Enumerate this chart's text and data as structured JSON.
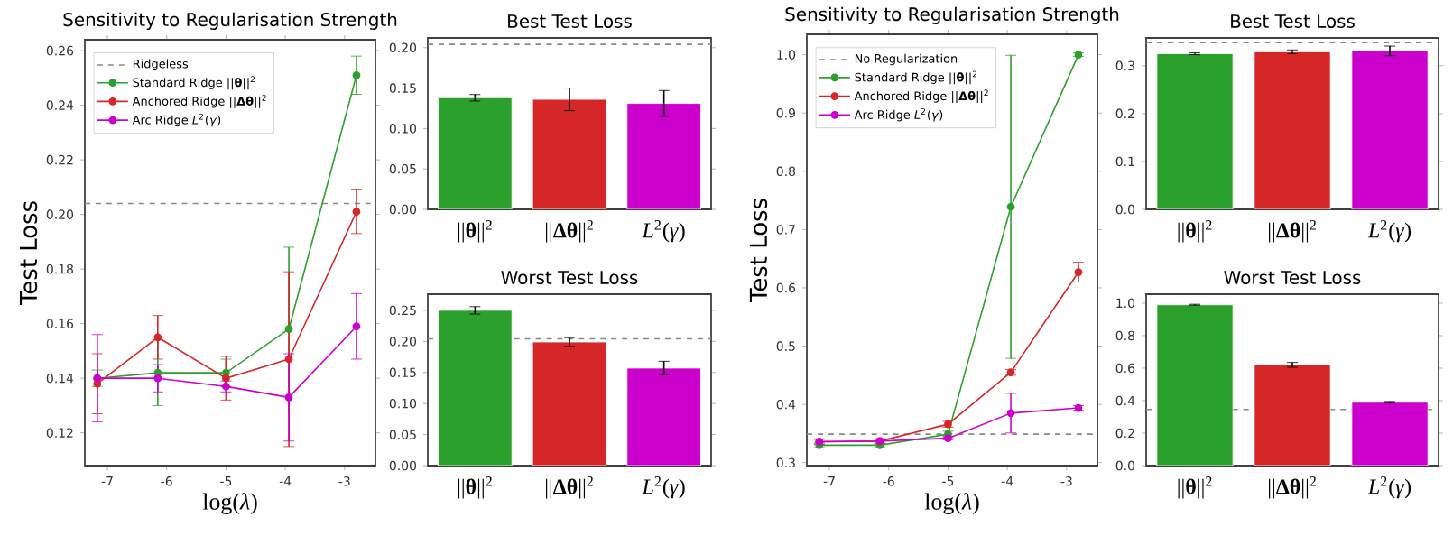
{
  "chart_data": [
    {
      "type": "line",
      "title": "Sensitivity to Regularisation Strength",
      "xlabel": "log(*λ*)",
      "ylabel": "Test Loss",
      "x": [
        -7.17,
        -6.15,
        -5.0,
        -3.94,
        -2.8
      ],
      "series": [
        {
          "name": "Standard Ridge ||**θ**||$^{2}$",
          "color": "#2ca02c",
          "values": [
            0.14,
            0.142,
            0.142,
            0.158,
            0.251
          ],
          "errors": [
            0.003,
            0.012,
            0.005,
            0.03,
            0.007
          ]
        },
        {
          "name": "Anchored Ridge ||**Δθ**||$^{2}$",
          "color": "#d62728",
          "values": [
            0.138,
            0.155,
            0.14,
            0.147,
            0.201
          ],
          "errors": [
            0.011,
            0.008,
            0.008,
            0.032,
            0.008
          ]
        },
        {
          "name": "Arc Ridge *L*$^{2}$(*γ*)",
          "color": "#cc00cc",
          "values": [
            0.14,
            0.14,
            0.137,
            0.133,
            0.159
          ],
          "errors": [
            0.016,
            0.005,
            0.002,
            0.016,
            0.012
          ]
        }
      ],
      "ref_lines": [
        {
          "axis": "y",
          "value": 0.204,
          "label": "Ridgeless",
          "color": "#888888",
          "line_style": "dashed"
        }
      ],
      "xlim": [
        -7.38,
        -2.48
      ],
      "xticks": [
        -7,
        -6,
        -5,
        -4,
        -3
      ],
      "ylim": [
        0.108,
        0.264
      ],
      "yticks": [
        0.12,
        0.14,
        0.16,
        0.18,
        {
          "value": 0.2,
          "label": "0.20"
        },
        0.22,
        0.24,
        0.26
      ],
      "legend": "top left",
      "marker": "circle",
      "line_style": "solid",
      "grid": false
    },
    {
      "type": "bar",
      "title": "Best Test Loss",
      "categories": [
        "||**θ**||$^{2}$",
        "||**Δθ**||$^{2}$",
        "*L*$^{2}$(*γ*)"
      ],
      "values": [
        0.138,
        0.136,
        0.131
      ],
      "errors": [
        0.004,
        0.014,
        0.016
      ],
      "colors": [
        "#2ca02c",
        "#d62728",
        "#cc00cc"
      ],
      "ref_lines": [
        {
          "axis": "y",
          "value": 0.204,
          "color": "#888888",
          "line_style": "dashed"
        }
      ],
      "ylim": [
        0,
        0.212
      ],
      "yticks": [
        {
          "value": 0,
          "label": "0.00"
        },
        0.05,
        {
          "value": 0.1,
          "label": "0.10"
        },
        0.15,
        {
          "value": 0.2,
          "label": "0.20"
        }
      ],
      "grid": false
    },
    {
      "type": "bar",
      "title": "Worst Test Loss",
      "categories": [
        "||**θ**||$^{2}$",
        "||**Δθ**||$^{2}$",
        "*L*$^{2}$(*γ*)"
      ],
      "values": [
        0.25,
        0.199,
        0.157
      ],
      "errors": [
        0.006,
        0.007,
        0.011
      ],
      "colors": [
        "#2ca02c",
        "#d62728",
        "#cc00cc"
      ],
      "ref_lines": [
        {
          "axis": "y",
          "value": 0.204,
          "color": "#888888",
          "line_style": "dashed"
        }
      ],
      "ylim": [
        0,
        0.276
      ],
      "yticks": [
        {
          "value": 0,
          "label": "0.00"
        },
        0.05,
        {
          "value": 0.1,
          "label": "0.10"
        },
        0.15,
        {
          "value": 0.2,
          "label": "0.20"
        },
        0.25
      ],
      "grid": false
    },
    {
      "type": "line",
      "title": "Sensitivity to Regularisation Strength",
      "xlabel": "log(*λ*)",
      "ylabel": "Test Loss",
      "x": [
        -7.17,
        -6.15,
        -5.0,
        -3.94,
        -2.8
      ],
      "series": [
        {
          "name": "Standard Ridge ||**θ**||$^{2}$",
          "color": "#2ca02c",
          "values": [
            0.33,
            0.33,
            0.349,
            0.739,
            1.0
          ],
          "errors": [
            0.004,
            0.004,
            0.005,
            0.26,
            0.003
          ]
        },
        {
          "name": "Anchored Ridge ||**Δθ**||$^{2}$",
          "color": "#d62728",
          "values": [
            0.336,
            0.337,
            0.366,
            0.455,
            0.627
          ],
          "errors": [
            0.004,
            0.004,
            0.005,
            0.005,
            0.017
          ]
        },
        {
          "name": "Arc Ridge *L*$^{2}$(*γ*)",
          "color": "#cc00cc",
          "values": [
            0.336,
            0.337,
            0.342,
            0.385,
            0.394
          ],
          "errors": [
            0.005,
            0.004,
            0.003,
            0.034,
            0.004
          ]
        }
      ],
      "ref_lines": [
        {
          "axis": "y",
          "value": 0.349,
          "label": "No Regularization",
          "color": "#888888",
          "line_style": "dashed"
        }
      ],
      "xlim": [
        -7.38,
        -2.48
      ],
      "xticks": [
        -7,
        -6,
        -5,
        -4,
        -3
      ],
      "ylim": [
        0.295,
        1.035
      ],
      "yticks": [
        0.3,
        0.4,
        0.5,
        0.6,
        0.7,
        0.8,
        0.9,
        {
          "value": 1.0,
          "label": "1.0"
        }
      ],
      "legend": "top left",
      "marker": "circle",
      "line_style": "solid",
      "grid": false
    },
    {
      "type": "bar",
      "title": "Best Test Loss",
      "categories": [
        "||**θ**||$^{2}$",
        "||**Δθ**||$^{2}$",
        "*L*$^{2}$(*γ*)"
      ],
      "values": [
        0.325,
        0.329,
        0.331
      ],
      "errors": [
        0.002,
        0.004,
        0.01
      ],
      "colors": [
        "#2ca02c",
        "#d62728",
        "#cc00cc"
      ],
      "ref_lines": [
        {
          "axis": "y",
          "value": 0.348,
          "color": "#888888",
          "line_style": "dashed"
        }
      ],
      "ylim": [
        0,
        0.358
      ],
      "yticks": [
        {
          "value": 0,
          "label": "0.0"
        },
        0.1,
        0.2,
        0.3
      ],
      "grid": false
    },
    {
      "type": "bar",
      "title": "Worst Test Loss",
      "categories": [
        "||**θ**||$^{2}$",
        "||**Δθ**||$^{2}$",
        "*L*$^{2}$(*γ*)"
      ],
      "values": [
        0.99,
        0.62,
        0.39
      ],
      "errors": [
        0.003,
        0.015,
        0.005
      ],
      "colors": [
        "#2ca02c",
        "#d62728",
        "#cc00cc"
      ],
      "ref_lines": [
        {
          "axis": "y",
          "value": 0.346,
          "color": "#888888",
          "line_style": "dashed"
        }
      ],
      "ylim": [
        0,
        1.055
      ],
      "yticks": [
        {
          "value": 0,
          "label": "0.0"
        },
        0.2,
        0.4,
        0.6,
        0.8,
        {
          "value": 1.0,
          "label": "1.0"
        }
      ],
      "grid": false
    }
  ]
}
